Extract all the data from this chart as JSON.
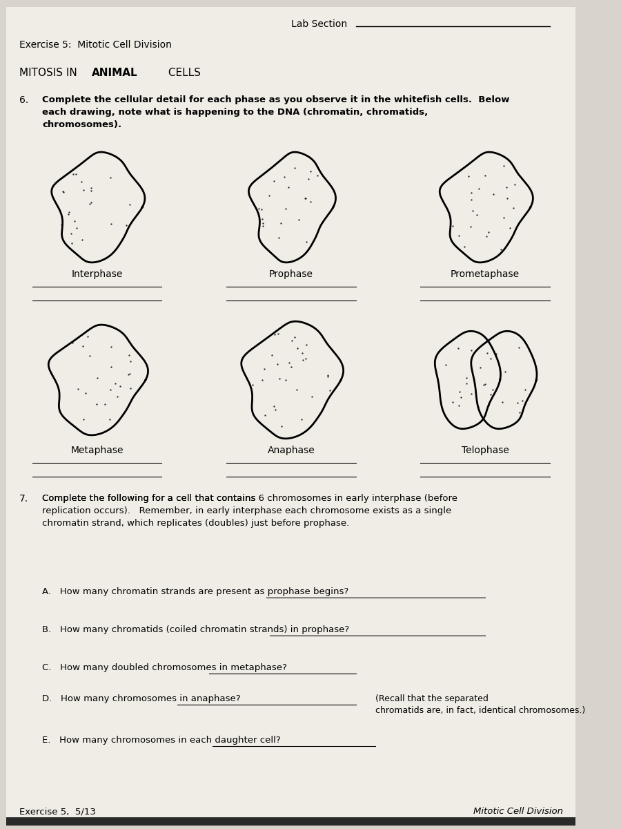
{
  "bg_color": "#d8d4cc",
  "page_bg": "#f0ede6",
  "title_line1": "Lab Section",
  "exercise_label": "Exercise 5:  Mitotic Cell Division",
  "section_title": "MITOSIS IN ANIMAL CELLS",
  "item6_text_bold": "Complete the cellular detail for each phase as you observe it in the whitefish cells.  Below\neach drawing, note what is happening to the DNA (chromatin, chromatids,\nchromosomes).",
  "item6_number": "6.",
  "phases_row1": [
    "Interphase",
    "Prophase",
    "Prometaphase"
  ],
  "phases_row2": [
    "Metaphase",
    "Anaphase",
    "Telophase"
  ],
  "item7_number": "7.",
  "item7_text": "Complete the following for a cell that contains 6 chromosomes in early interphase (before\nreplication occurs).   Remember, in early interphase each chromosome exists as a single\nchromatin strand, which replicates (doubles) just before prophase.",
  "item7_underline_word": "single",
  "questions": [
    "A.   How many chromatin strands are present as prophase begins?",
    "B.   How many chromatids (coiled chromatin strands) in prophase?",
    "C.   How many doubled chromosomes in metaphase?",
    "D.   How many chromosomes in anaphase?",
    "E.   How many chromosomes in each daughter cell?"
  ],
  "question_D_extra": "(Recall that the separated\nchromatids are, in fact, identical chromosomes.)",
  "footer_left": "Exercise 5,  5/13",
  "footer_right": "Mitotic Cell Division"
}
